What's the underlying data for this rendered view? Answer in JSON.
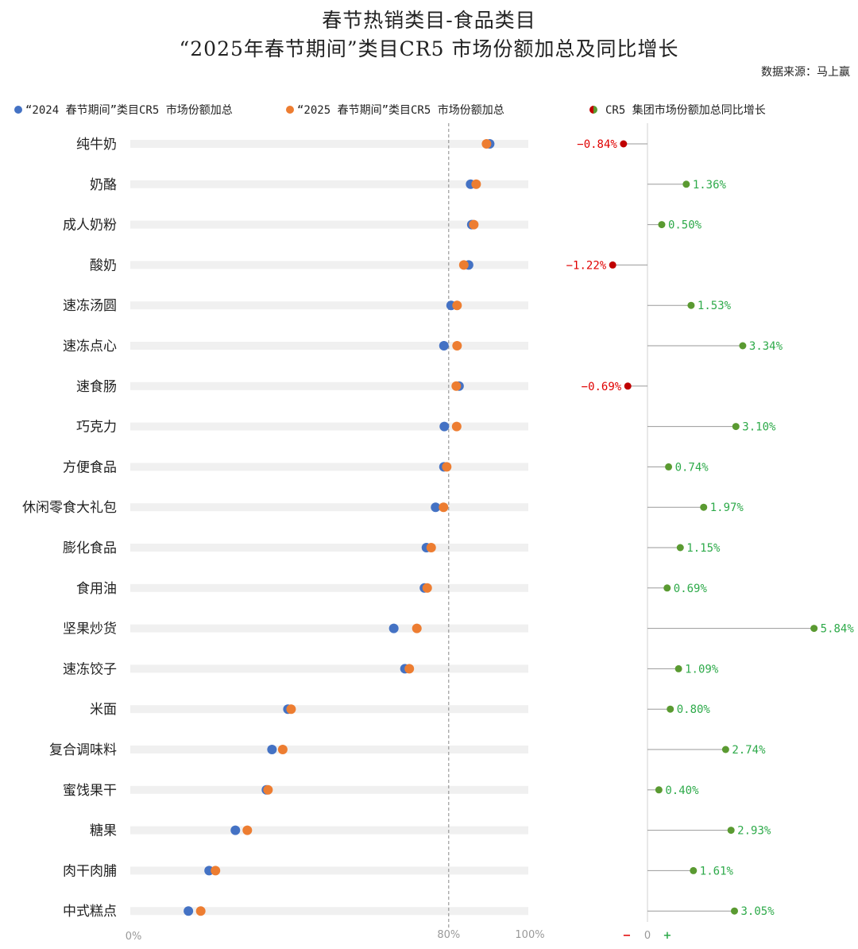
{
  "title_line1": "春节热销类目-食品类目",
  "title_line2": "“2025年春节期间”类目CR5 市场份额加总及同比增长",
  "source": "数据来源：马上赢",
  "colors": {
    "series_2024": "#4472c4",
    "series_2025": "#ed7d31",
    "positive": "#5a9a31",
    "positive_text": "#2eaa4a",
    "negative": "#c00000",
    "negative_text": "#e00000",
    "track": "#f0f0f0"
  },
  "legend": {
    "series_2024": "“2024 春节期间”类目CR5 市场份额加总",
    "series_2025": "“2025 春节期间”类目CR5 市场份额加总",
    "growth": "CR5 集团市场份额加总同比增长"
  },
  "axis": {
    "tick_0": "0%",
    "tick_80": "80%",
    "tick_100": "100%",
    "growth_minus": "−",
    "growth_zero": "0",
    "growth_plus": "+"
  },
  "chart_data": [
    {
      "type": "scatter",
      "title": "“2025年春节期间”类目CR5 市场份额加总及同比增长",
      "categories": [
        "纯牛奶",
        "奶酪",
        "成人奶粉",
        "酸奶",
        "速冻汤圆",
        "速冻点心",
        "速食肠",
        "巧克力",
        "方便食品",
        "休闲零食大礼包",
        "膨化食品",
        "食用油",
        "坚果炒货",
        "速冻饺子",
        "米面",
        "复合调味料",
        "蜜饯果干",
        "糖果",
        "肉干肉脯",
        "中式糕点"
      ],
      "series": [
        {
          "name": "“2024 春节期间”类目CR5 市场份额加总",
          "values": [
            90.3,
            85.5,
            85.8,
            85.0,
            80.6,
            78.8,
            82.6,
            78.9,
            78.8,
            76.7,
            74.4,
            73.9,
            66.2,
            69.0,
            39.6,
            35.6,
            34.2,
            26.4,
            19.8,
            14.6
          ]
        },
        {
          "name": "“2025 春节期间”类目CR5 市场份额加总",
          "values": [
            89.5,
            86.9,
            86.3,
            83.8,
            82.1,
            82.1,
            81.9,
            82.0,
            79.5,
            78.7,
            75.6,
            74.6,
            72.0,
            70.1,
            40.4,
            38.3,
            34.6,
            29.4,
            21.4,
            17.7
          ]
        }
      ],
      "xlim": [
        0,
        100
      ],
      "reference_line": 80
    },
    {
      "type": "bar",
      "title": "CR5 集团市场份额加总同比增长",
      "categories": [
        "纯牛奶",
        "奶酪",
        "成人奶粉",
        "酸奶",
        "速冻汤圆",
        "速冻点心",
        "速食肠",
        "巧克力",
        "方便食品",
        "休闲零食大礼包",
        "膨化食品",
        "食用油",
        "坚果炒货",
        "速冻饺子",
        "米面",
        "复合调味料",
        "蜜饯果干",
        "糖果",
        "肉干肉脯",
        "中式糕点"
      ],
      "values": [
        -0.84,
        1.36,
        0.5,
        -1.22,
        1.53,
        3.34,
        -0.69,
        3.1,
        0.74,
        1.97,
        1.15,
        0.69,
        5.84,
        1.09,
        0.8,
        2.74,
        0.4,
        2.93,
        1.61,
        3.05
      ],
      "labels": [
        "−0.84%",
        "1.36%",
        "0.50%",
        "−1.22%",
        "1.53%",
        "3.34%",
        "−0.69%",
        "3.10%",
        "0.74%",
        "1.97%",
        "1.15%",
        "0.69%",
        "5.84%",
        "1.09%",
        "0.80%",
        "2.74%",
        "0.40%",
        "2.93%",
        "1.61%",
        "3.05%"
      ]
    }
  ]
}
